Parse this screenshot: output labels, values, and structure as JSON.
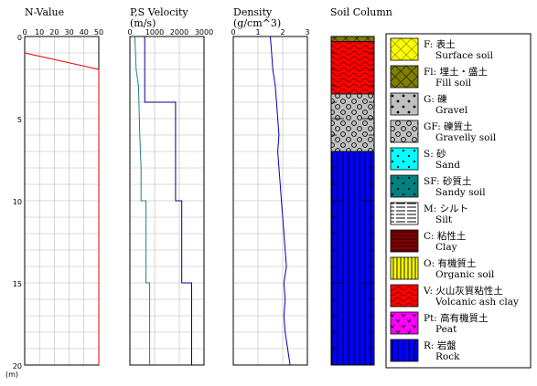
{
  "chart_data": {
    "type": "line",
    "depth_axis": {
      "range": [
        0,
        20
      ],
      "ticks": [
        0,
        5,
        10,
        15,
        20
      ],
      "unit": "(m)"
    },
    "panels": [
      {
        "key": "nvalue",
        "title": "N-Value",
        "xlim": [
          0,
          50
        ],
        "ticks": [
          0,
          10,
          20,
          30,
          40,
          50
        ],
        "series": [
          {
            "color": "#e00000",
            "points": [
              [
                0,
                1.0
              ],
              [
                50,
                2.0
              ],
              [
                50,
                20.0
              ]
            ]
          }
        ]
      },
      {
        "key": "velocity",
        "title": "P,S Velocity",
        "subtitle": "(m/s)",
        "xlim": [
          0,
          3000
        ],
        "ticks": [
          0,
          1000,
          2000,
          3000
        ],
        "series": [
          {
            "color": "#000090",
            "points": [
              [
                600,
                0.0
              ],
              [
                600,
                4.0
              ],
              [
                1850,
                4.0
              ],
              [
                1850,
                10.0
              ],
              [
                2100,
                10.0
              ],
              [
                2100,
                15.0
              ],
              [
                2500,
                15.0
              ],
              [
                2500,
                20.0
              ]
            ]
          },
          {
            "color": "#208080",
            "points": [
              [
                200,
                0.0
              ],
              [
                250,
                2.0
              ],
              [
                350,
                3.0
              ],
              [
                400,
                6.0
              ],
              [
                450,
                8.0
              ],
              [
                450,
                10.0
              ],
              [
                650,
                10.0
              ],
              [
                650,
                15.0
              ],
              [
                800,
                15.0
              ],
              [
                800,
                20.0
              ]
            ]
          }
        ]
      },
      {
        "key": "density",
        "title": "Density",
        "subtitle": "(g/cm^3)",
        "xlim": [
          0,
          3
        ],
        "ticks": [
          0,
          1,
          2,
          3
        ],
        "series": [
          {
            "color": "#0000c0",
            "points": [
              [
                1.5,
                0.0
              ],
              [
                1.55,
                1.0
              ],
              [
                1.6,
                2.0
              ],
              [
                1.7,
                3.0
              ],
              [
                1.75,
                4.0
              ],
              [
                1.8,
                5.0
              ],
              [
                1.85,
                6.0
              ],
              [
                1.8,
                7.0
              ],
              [
                1.85,
                8.0
              ],
              [
                1.9,
                9.0
              ],
              [
                1.95,
                10.0
              ],
              [
                2.0,
                11.0
              ],
              [
                2.05,
                12.0
              ],
              [
                2.1,
                13.0
              ],
              [
                2.15,
                14.0
              ],
              [
                2.05,
                15.0
              ],
              [
                2.1,
                16.0
              ],
              [
                2.05,
                17.0
              ],
              [
                2.1,
                18.0
              ],
              [
                2.2,
                19.0
              ],
              [
                2.3,
                20.0
              ]
            ]
          }
        ]
      }
    ],
    "soil_column": {
      "title": "Soil Column",
      "layers": [
        {
          "top": 0.0,
          "bottom": 0.3,
          "type": "Fl"
        },
        {
          "top": 0.3,
          "bottom": 3.5,
          "type": "V"
        },
        {
          "top": 3.5,
          "bottom": 7.0,
          "type": "GF"
        },
        {
          "top": 7.0,
          "bottom": 20.0,
          "type": "R"
        }
      ]
    },
    "legend": [
      {
        "code": "F",
        "jp": "表土",
        "en": "Surface soil",
        "pattern": "F",
        "bg": "#ffff00",
        "fg": "#a0a000"
      },
      {
        "code": "Fl",
        "jp": "埋土・盛土",
        "en": "Fill soil",
        "pattern": "Fl",
        "bg": "#808000",
        "fg": "#303000"
      },
      {
        "code": "G",
        "jp": "礫",
        "en": "Gravel",
        "pattern": "G",
        "bg": "#c0c0c0",
        "fg": "#000000"
      },
      {
        "code": "GF",
        "jp": "礫質土",
        "en": "Gravelly soil",
        "pattern": "GF",
        "bg": "#c0c0c0",
        "fg": "#000000"
      },
      {
        "code": "S",
        "jp": "砂",
        "en": "Sand",
        "pattern": "S",
        "bg": "#00ffff",
        "fg": "#000000"
      },
      {
        "code": "SF",
        "jp": "砂質土",
        "en": "Sandy soil",
        "pattern": "SF",
        "bg": "#008080",
        "fg": "#000000"
      },
      {
        "code": "M",
        "jp": "シルト",
        "en": "Silt",
        "pattern": "M",
        "bg": "#ffffff",
        "fg": "#000000"
      },
      {
        "code": "C",
        "jp": "粘性土",
        "en": "Clay",
        "pattern": "C",
        "bg": "#800000",
        "fg": "#300000"
      },
      {
        "code": "O",
        "jp": "有機質土",
        "en": "Organic soil",
        "pattern": "O",
        "bg": "#ffff00",
        "fg": "#000000"
      },
      {
        "code": "V",
        "jp": "火山灰質粘性土",
        "en": "Volcanic ash clay",
        "pattern": "V",
        "bg": "#ff0000",
        "fg": "#800000"
      },
      {
        "code": "Pt",
        "jp": "高有機質土",
        "en": "Peat",
        "pattern": "Pt",
        "bg": "#ff00ff",
        "fg": "#000000"
      },
      {
        "code": "R",
        "jp": "岩盤",
        "en": "Rock",
        "pattern": "R",
        "bg": "#0000ff",
        "fg": "#000000"
      }
    ]
  }
}
